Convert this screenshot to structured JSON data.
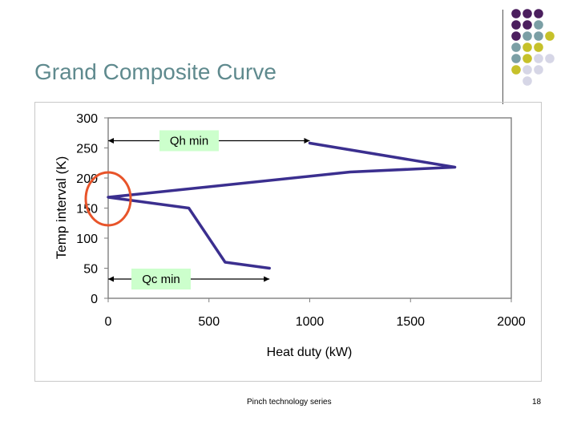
{
  "slide": {
    "title": "Grand Composite Curve",
    "footer": "Pinch technology series",
    "page_number": "18"
  },
  "colors": {
    "dot_purple": "#4b1f5e",
    "dot_teal": "#7b9fa5",
    "dot_yellow": "#c6c12a",
    "dot_light": "#d6d6e6",
    "curve": "#3b2f8f",
    "annotation_fill": "#ccffcc",
    "circle": "#e8542a"
  },
  "chart_data": {
    "type": "line",
    "xlabel": "Heat duty (kW)",
    "ylabel": "Temp interval (K)",
    "xlim": [
      0,
      2000
    ],
    "ylim": [
      0,
      300
    ],
    "xticks": [
      "0",
      "500",
      "1000",
      "1500",
      "2000"
    ],
    "yticks": [
      "0",
      "50",
      "100",
      "150",
      "200",
      "250",
      "300"
    ],
    "grid": false,
    "series": [
      {
        "x": [
          1000,
          1720,
          1200,
          0,
          400,
          580,
          800
        ],
        "y": [
          258,
          218,
          210,
          168,
          150,
          60,
          50
        ]
      }
    ],
    "annotations": [
      {
        "label": "Qh min",
        "x_from": 0,
        "x_to": 1000,
        "y": 262
      },
      {
        "label": "Qc min",
        "x_from": 0,
        "x_to": 800,
        "y": 32
      }
    ]
  }
}
